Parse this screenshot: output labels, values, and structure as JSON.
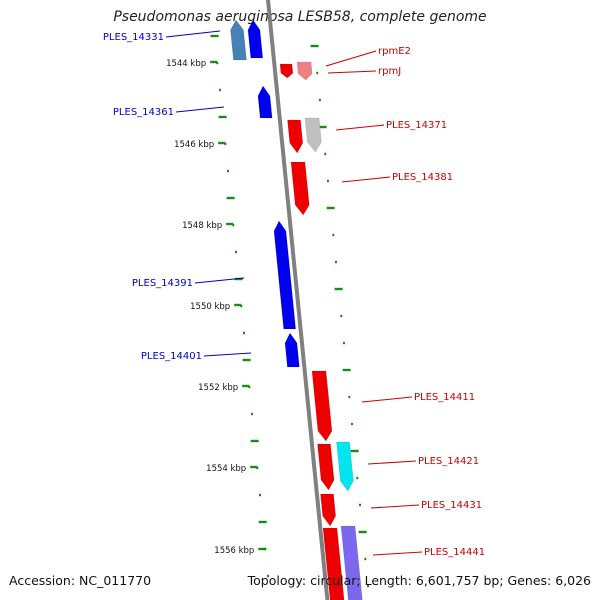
{
  "title": "Pseudomonas aeruginosa LESB58, complete genome",
  "footer": {
    "accession": "Accession: NC_011770",
    "summary": "Topology: circular; Length: 6,601,757 bp; Genes: 6,026"
  },
  "colors": {
    "backbone": "#808080",
    "tick": "#1a8a1a",
    "minus_strand_label": "#0000cc",
    "plus_strand_label": "#cc0000",
    "gene_blue": "#0000ee",
    "gene_red": "#ee0000",
    "gene_steel": "#4682b4",
    "gene_salmon": "#f08080",
    "gene_grey": "#c0c0c0",
    "gene_cyan": "#00e5ee",
    "gene_slate": "#7b68ee"
  },
  "axis_labels": [
    "1544 kbp",
    "1546 kbp",
    "1548 kbp",
    "1550 kbp",
    "1552 kbp",
    "1554 kbp",
    "1556 kbp"
  ],
  "genes_minus": [
    "PLES_14331",
    "PLES_14361",
    "PLES_14391",
    "PLES_14401"
  ],
  "genes_plus": [
    "rpmE2",
    "rpmJ",
    "PLES_14371",
    "PLES_14381",
    "PLES_14411",
    "PLES_14421",
    "PLES_14431",
    "PLES_14441"
  ]
}
